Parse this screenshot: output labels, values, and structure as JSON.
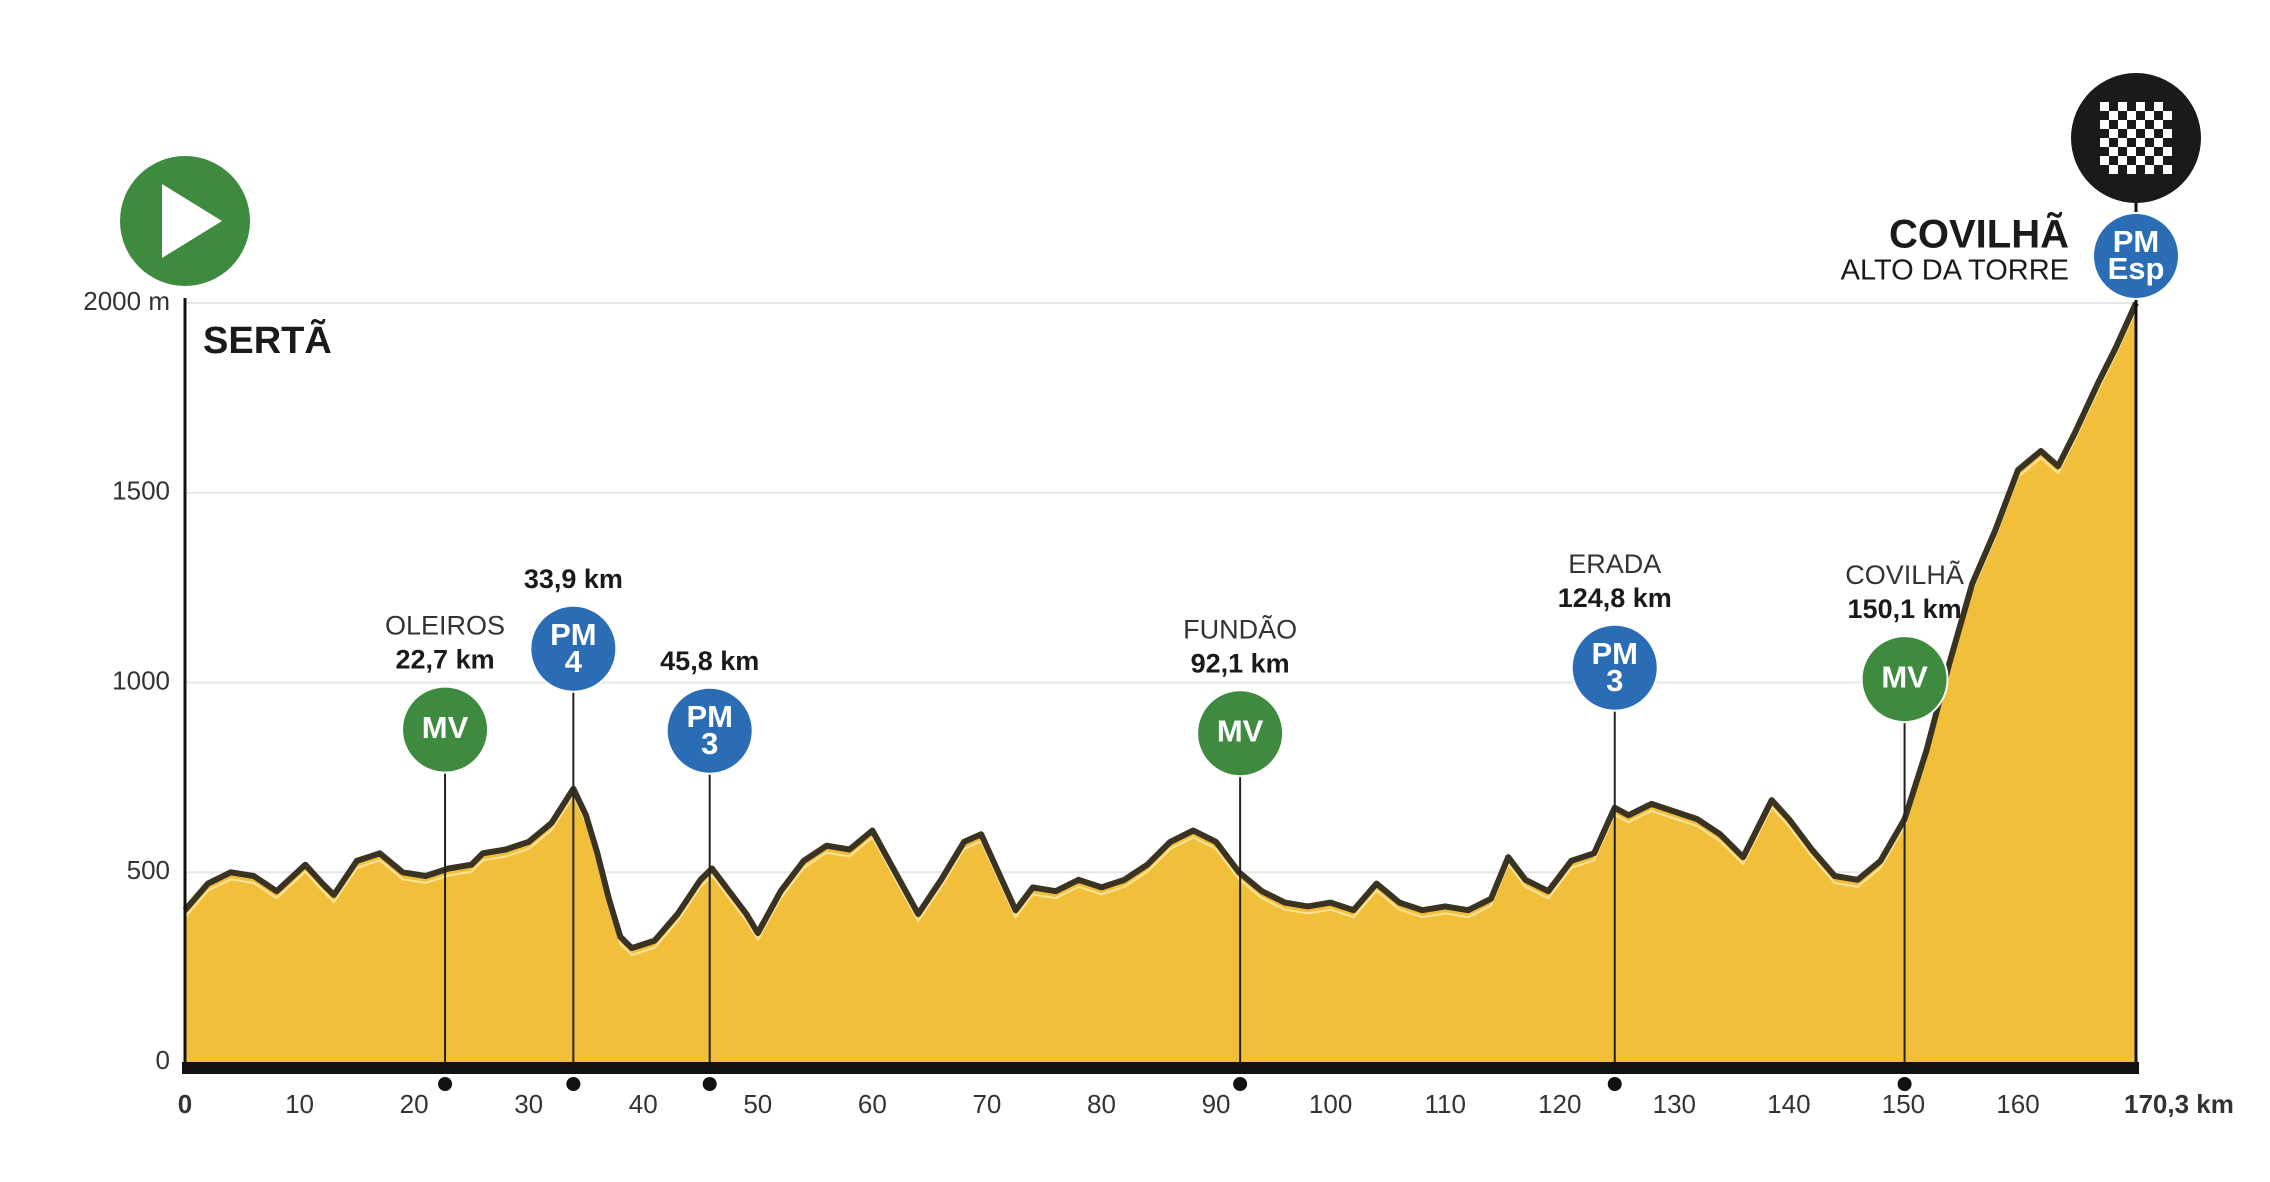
{
  "chart_data": {
    "type": "area",
    "x": [
      0,
      2,
      4,
      6,
      8,
      10.5,
      12,
      13,
      15,
      17,
      19,
      21,
      23,
      25,
      26,
      28,
      30,
      32,
      33.9,
      35,
      36,
      37,
      38,
      39,
      41,
      43,
      45,
      46,
      47,
      49,
      50,
      52,
      54,
      56,
      58,
      60,
      62,
      64,
      66,
      68,
      69.5,
      71,
      72.5,
      74,
      76,
      78,
      80,
      82,
      84,
      86,
      88,
      90,
      92,
      94,
      96,
      98,
      100,
      102,
      104,
      106,
      108,
      110,
      112,
      114,
      115.5,
      117,
      119,
      121,
      123,
      124.8,
      126,
      128,
      130,
      132,
      134,
      136,
      138.5,
      140,
      142,
      144,
      146,
      148,
      150.1,
      152,
      154,
      156,
      158,
      160,
      162,
      163.5,
      165,
      167,
      168.5,
      170.3
    ],
    "values": [
      400,
      470,
      500,
      490,
      450,
      520,
      470,
      440,
      530,
      550,
      500,
      490,
      510,
      520,
      550,
      560,
      580,
      630,
      720,
      650,
      550,
      430,
      330,
      300,
      320,
      390,
      480,
      510,
      470,
      390,
      340,
      450,
      530,
      570,
      560,
      610,
      500,
      390,
      480,
      580,
      600,
      500,
      400,
      460,
      450,
      480,
      460,
      480,
      520,
      580,
      610,
      580,
      500,
      450,
      420,
      410,
      420,
      400,
      470,
      420,
      400,
      410,
      400,
      430,
      540,
      480,
      450,
      530,
      550,
      670,
      650,
      680,
      660,
      640,
      600,
      540,
      690,
      640,
      560,
      490,
      480,
      530,
      640,
      820,
      1050,
      1260,
      1400,
      1560,
      1610,
      1570,
      1660,
      1790,
      1880,
      2000
    ],
    "color": "#f2bf3a",
    "line_color": "#3b3321",
    "xlim": [
      0,
      170.3
    ],
    "ylim": [
      0,
      2000
    ],
    "xticks": [
      0,
      10,
      20,
      30,
      40,
      50,
      60,
      70,
      80,
      90,
      100,
      110,
      120,
      130,
      140,
      150,
      160,
      {
        "value": 170.3,
        "label": "170,3 km"
      }
    ],
    "yticks": [
      0,
      500,
      1000,
      1500,
      {
        "value": 2000,
        "label": "2000 m"
      }
    ],
    "grid": true,
    "start": {
      "name": "SERTÃ"
    },
    "finish": {
      "name": "COVILHÃ",
      "subtitle": "ALTO DA TORRE",
      "badge": [
        "PM",
        "Esp"
      ],
      "color": "#2a6db5"
    },
    "markers": [
      {
        "place": "OLEIROS",
        "km": {
          "value": 22.7,
          "label": "22,7 km"
        },
        "badge": [
          "MV"
        ],
        "color": "#3e8a3f"
      },
      {
        "km": {
          "value": 33.9,
          "label": "33,9 km"
        },
        "badge": [
          "PM",
          "4"
        ],
        "color": "#2a6db5"
      },
      {
        "km": {
          "value": 45.8,
          "label": "45,8 km"
        },
        "badge": [
          "PM",
          "3"
        ],
        "color": "#2a6db5"
      },
      {
        "place": "FUNDÃO",
        "km": {
          "value": 92.1,
          "label": "92,1 km"
        },
        "badge": [
          "MV"
        ],
        "color": "#3e8a3f"
      },
      {
        "place": "ERADA",
        "km": {
          "value": 124.8,
          "label": "124,8 km"
        },
        "badge": [
          "PM",
          "3"
        ],
        "color": "#2a6db5"
      },
      {
        "place": "COVILHÃ",
        "km": {
          "value": 150.1,
          "label": "150,1 km"
        },
        "badge": [
          "MV"
        ],
        "color": "#3e8a3f"
      }
    ]
  }
}
